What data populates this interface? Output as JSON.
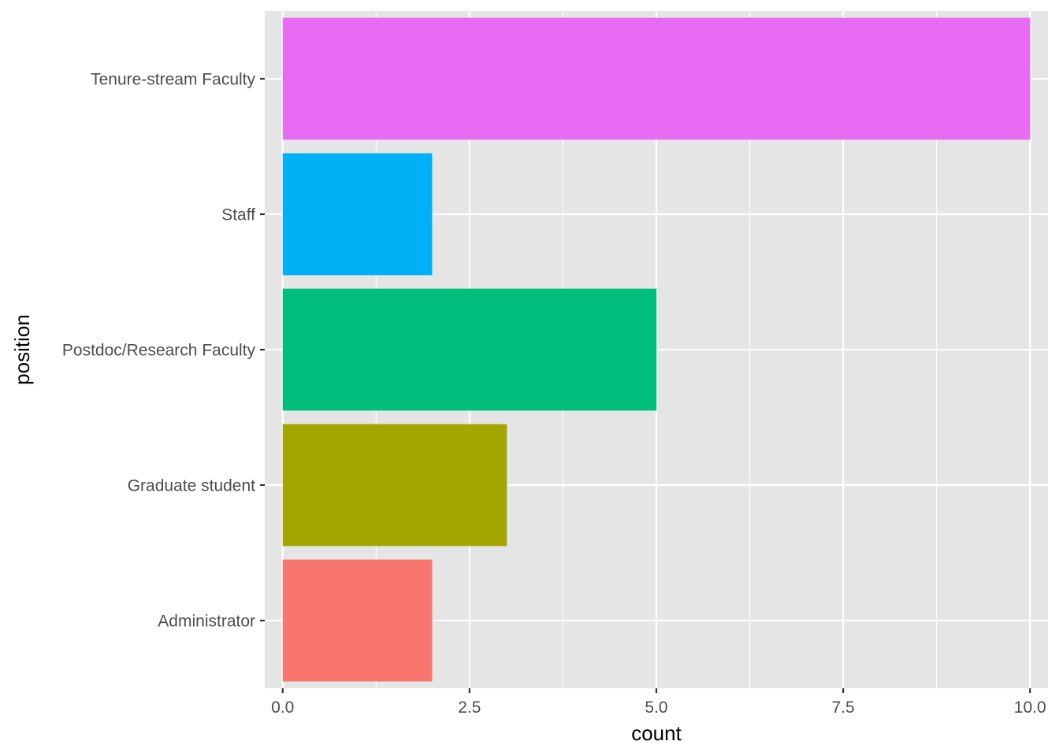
{
  "chart_data": {
    "type": "bar",
    "orientation": "horizontal",
    "categories": [
      "Administrator",
      "Graduate student",
      "Postdoc/Research Faculty",
      "Staff",
      "Tenure-stream Faculty"
    ],
    "values": [
      2,
      3,
      5,
      2,
      10
    ],
    "colors": [
      "#F8766D",
      "#A3A500",
      "#00BF7D",
      "#00B0F6",
      "#E76BF3"
    ],
    "xlabel": "count",
    "ylabel": "position",
    "xlim": [
      -0.24,
      10.24
    ],
    "x_ticks": [
      {
        "value": 0,
        "label": "0.0"
      },
      {
        "value": 2.5,
        "label": "2.5"
      },
      {
        "value": 5,
        "label": "5.0"
      },
      {
        "value": 7.5,
        "label": "7.5"
      },
      {
        "value": 10,
        "label": "10.0"
      }
    ],
    "x_minor_ticks": [
      1.25,
      3.75,
      6.25,
      8.75
    ],
    "grid": true,
    "legend": "none",
    "panel_background": "#E5E5E5",
    "grid_color": "#FFFFFF"
  }
}
